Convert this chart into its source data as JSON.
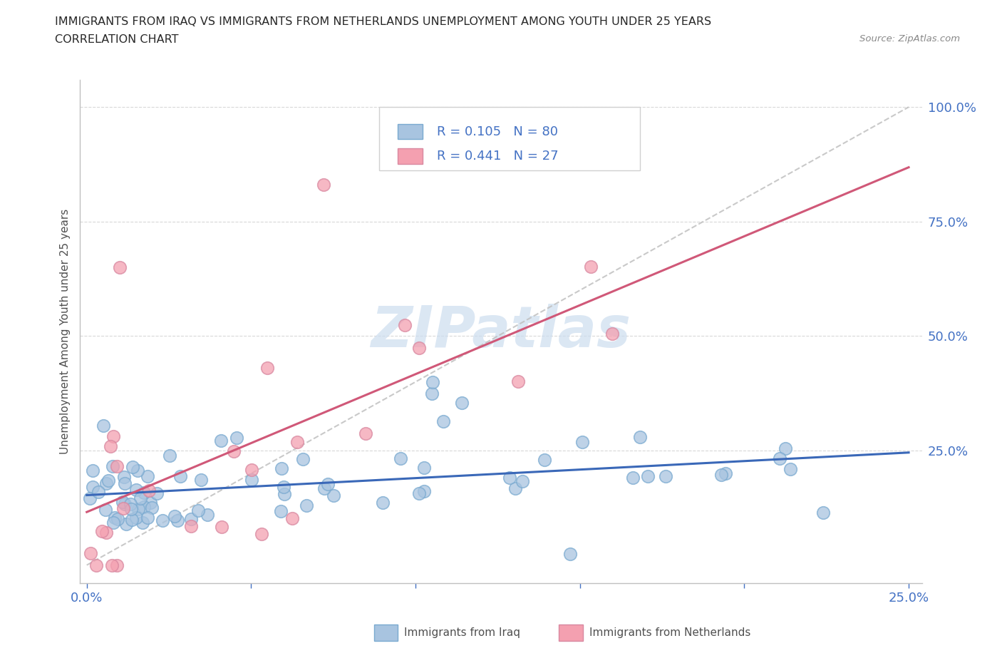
{
  "title_line1": "IMMIGRANTS FROM IRAQ VS IMMIGRANTS FROM NETHERLANDS UNEMPLOYMENT AMONG YOUTH UNDER 25 YEARS",
  "title_line2": "CORRELATION CHART",
  "source": "Source: ZipAtlas.com",
  "ylabel": "Unemployment Among Youth under 25 years",
  "legend_iraq_R": "0.105",
  "legend_iraq_N": "80",
  "legend_neth_R": "0.441",
  "legend_neth_N": "27",
  "iraq_color": "#a8c4e0",
  "neth_color": "#f4a0b0",
  "iraq_line_color": "#3a68b8",
  "neth_line_color": "#d05878",
  "ref_line_color": "#c0c0c0",
  "watermark_color": "#ccddef",
  "text_blue": "#4472c4",
  "grid_color": "#d8d8d8",
  "spine_color": "#c0c0c0"
}
